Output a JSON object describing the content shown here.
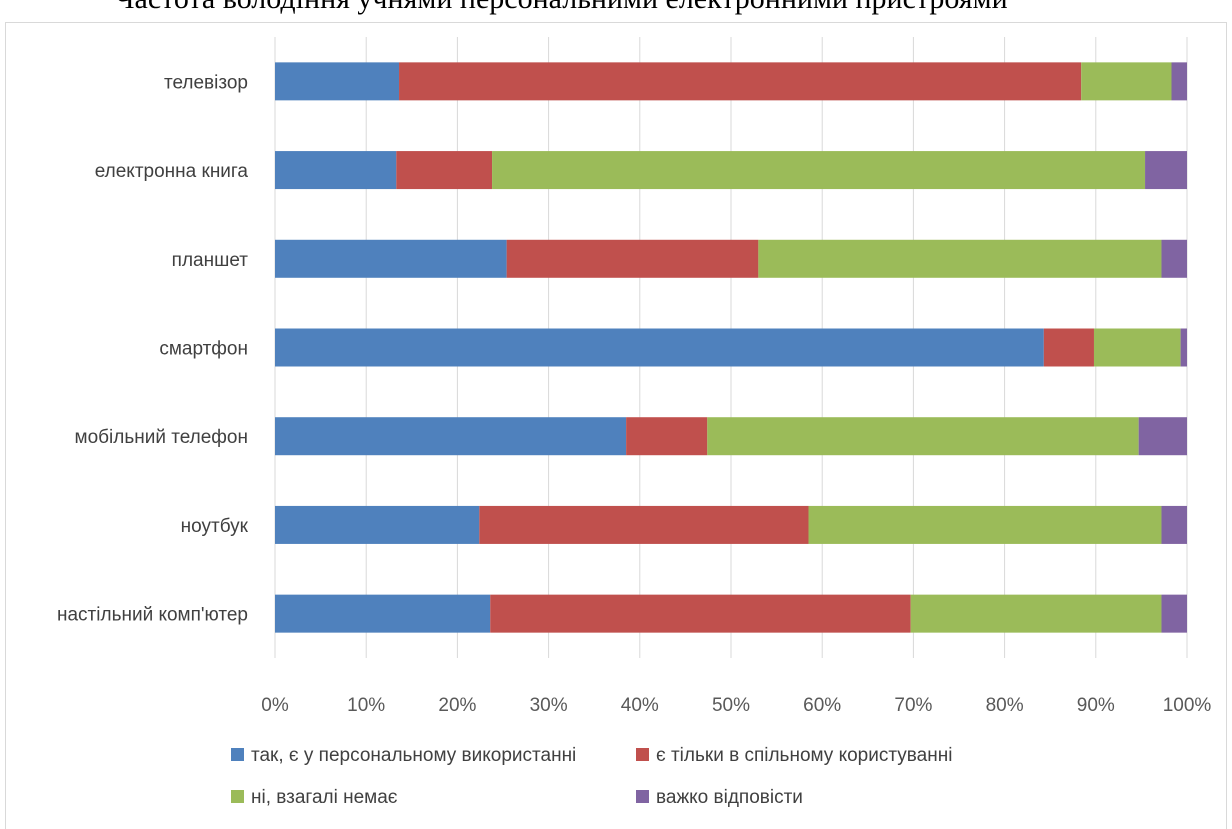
{
  "chart_data": {
    "type": "bar",
    "orientation": "horizontal",
    "stacked": "percent",
    "title": "Частота володіння учнями персональними електронними пристроями",
    "categories": [
      "телевізор",
      "електронна книга",
      "планшет",
      "смартфон",
      "мобільний телефон",
      "ноутбук",
      "настільний комп'ютер"
    ],
    "series": [
      {
        "name": "так, є у персональному використанні",
        "color": "#4f81bd",
        "values": [
          13.6,
          13.3,
          25.4,
          84.3,
          38.5,
          22.4,
          23.6
        ]
      },
      {
        "name": "є тільки в спільному користуванні",
        "color": "#c0504d",
        "values": [
          74.8,
          10.5,
          27.6,
          5.5,
          8.9,
          36.1,
          46.1
        ]
      },
      {
        "name": "ні, взагалі немає",
        "color": "#9bbb59",
        "values": [
          9.9,
          71.6,
          44.2,
          9.5,
          47.3,
          38.7,
          27.5
        ]
      },
      {
        "name": "важко відповісти",
        "color": "#8064a2",
        "values": [
          1.7,
          4.6,
          2.8,
          0.7,
          5.3,
          2.8,
          2.8
        ]
      }
    ],
    "xlim": [
      0,
      100
    ],
    "x_ticks": [
      "0%",
      "10%",
      "20%",
      "30%",
      "40%",
      "50%",
      "60%",
      "70%",
      "80%",
      "90%",
      "100%"
    ],
    "grid": true,
    "legend_position": "bottom"
  }
}
